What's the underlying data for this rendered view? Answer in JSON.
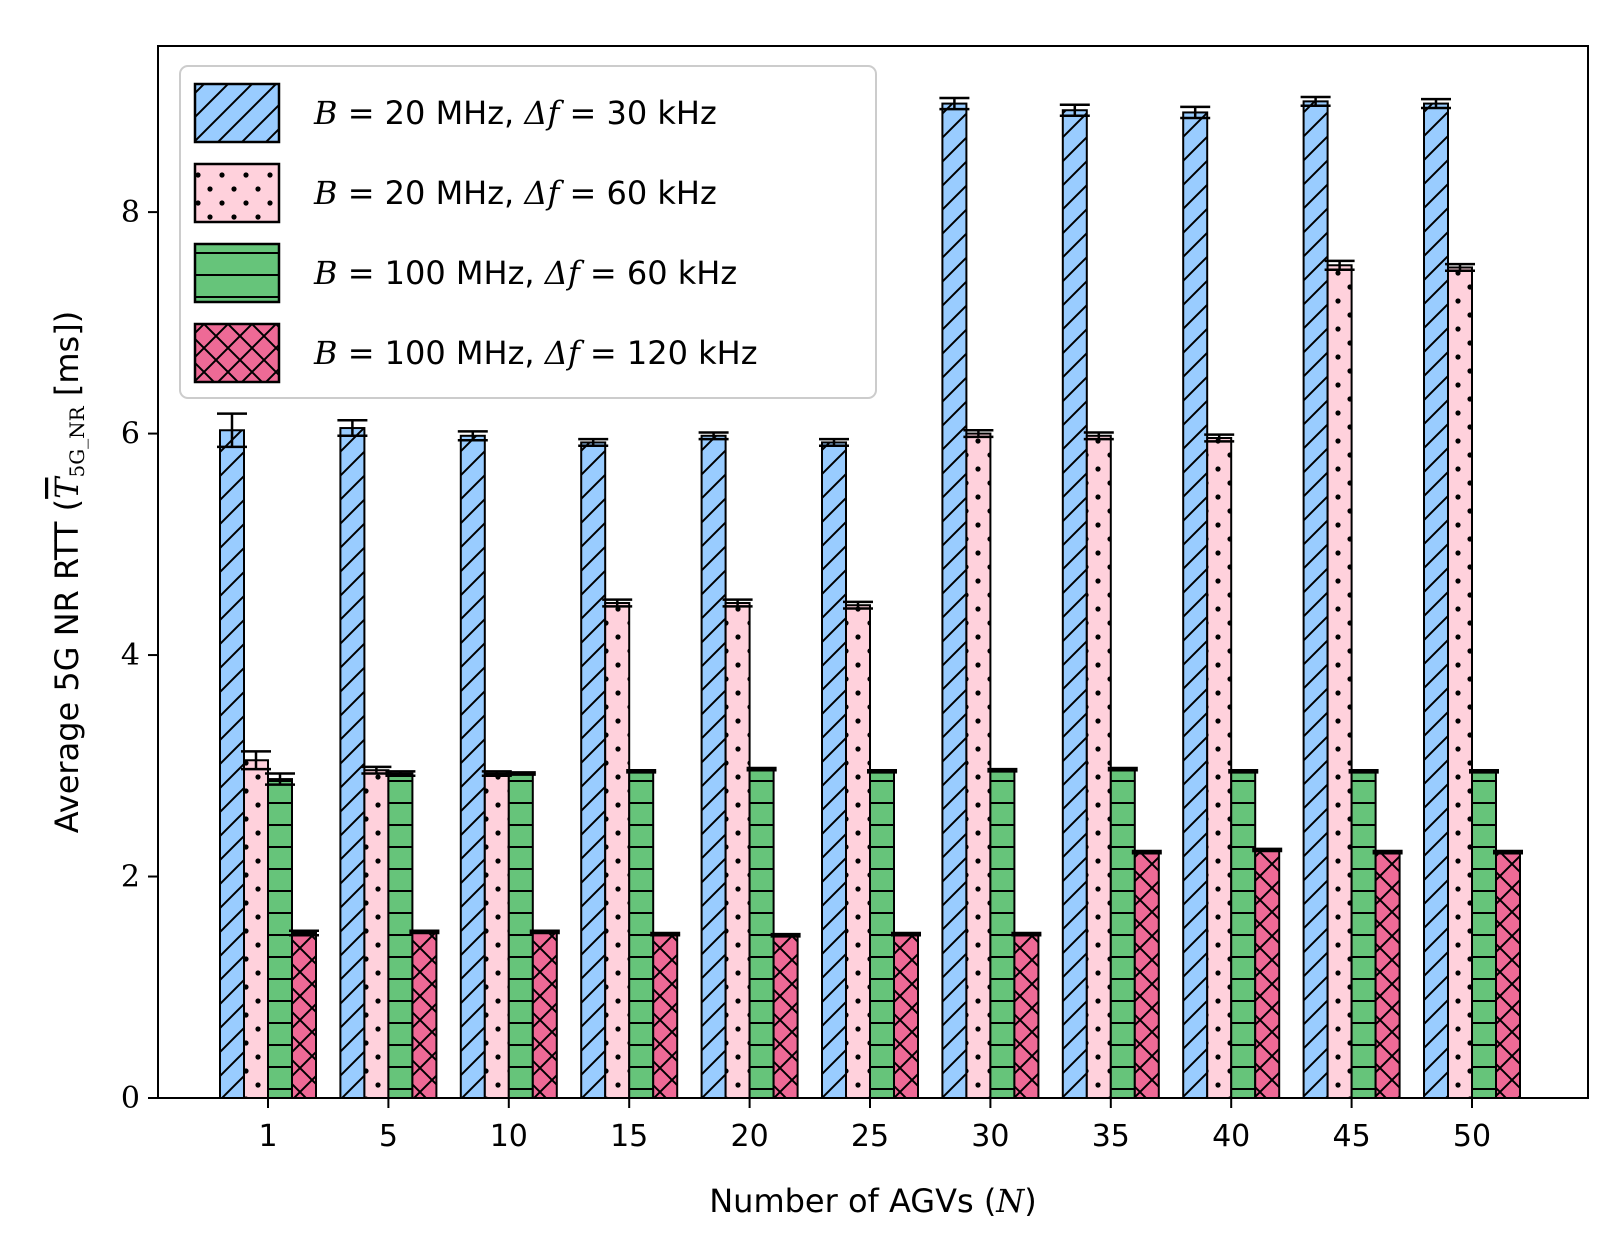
{
  "chart_data": {
    "type": "bar",
    "title": "",
    "xlabel": "Number of AGVs (N)",
    "ylabel": "Average 5G NR RTT (T̅ 5G_NR [ms])",
    "ylim": [
      0,
      9.5
    ],
    "yticks": [
      0,
      2,
      4,
      6,
      8
    ],
    "categories": [
      "1",
      "5",
      "10",
      "15",
      "20",
      "25",
      "30",
      "35",
      "40",
      "45",
      "50"
    ],
    "legend_position": "top-left",
    "grid": false,
    "series": [
      {
        "name": "B = 20 MHz, Δf = 30 kHz",
        "color": "#99ccff",
        "hatch": "diagonal",
        "values": [
          6.03,
          6.05,
          5.98,
          5.92,
          5.98,
          5.92,
          8.98,
          8.92,
          8.9,
          9.0,
          8.98
        ],
        "errors": [
          0.15,
          0.07,
          0.04,
          0.03,
          0.03,
          0.03,
          0.05,
          0.05,
          0.05,
          0.04,
          0.04
        ]
      },
      {
        "name": "B = 20 MHz, Δf = 60 kHz",
        "color": "#ffd1dc",
        "hatch": "dots",
        "values": [
          3.05,
          2.96,
          2.93,
          4.47,
          4.47,
          4.45,
          6.0,
          5.98,
          5.96,
          7.52,
          7.5
        ],
        "errors": [
          0.08,
          0.03,
          0.02,
          0.03,
          0.03,
          0.03,
          0.03,
          0.03,
          0.03,
          0.04,
          0.03
        ]
      },
      {
        "name": "B = 100 MHz, Δf = 60 kHz",
        "color": "#66c47a",
        "hatch": "horizontal",
        "values": [
          2.88,
          2.93,
          2.93,
          2.95,
          2.97,
          2.95,
          2.96,
          2.97,
          2.95,
          2.95,
          2.95
        ],
        "errors": [
          0.05,
          0.02,
          0.01,
          0.01,
          0.01,
          0.01,
          0.01,
          0.01,
          0.01,
          0.01,
          0.01
        ]
      },
      {
        "name": "B = 100 MHz, Δf = 120 kHz",
        "color": "#ee6a96",
        "hatch": "cross",
        "values": [
          1.49,
          1.5,
          1.5,
          1.48,
          1.47,
          1.48,
          1.48,
          2.22,
          2.24,
          2.22,
          2.22
        ],
        "errors": [
          0.02,
          0.01,
          0.01,
          0.01,
          0.01,
          0.01,
          0.01,
          0.01,
          0.01,
          0.01,
          0.01
        ]
      }
    ],
    "legend": [
      {
        "prefix": "B",
        "mid": " = 20 MHz, ",
        "delta": "Δf",
        "suffix": " = 30 kHz"
      },
      {
        "prefix": "B",
        "mid": " = 20 MHz, ",
        "delta": "Δf",
        "suffix": " = 60 kHz"
      },
      {
        "prefix": "B",
        "mid": " = 100 MHz, ",
        "delta": "Δf",
        "suffix": " = 60 kHz"
      },
      {
        "prefix": "B",
        "mid": " = 100 MHz, ",
        "delta": "Δf",
        "suffix": " = 120 kHz"
      }
    ],
    "xlabel_parts": {
      "text": "Number of AGVs (",
      "var": "N",
      "close": ")"
    },
    "ylabel_parts": {
      "text": "Average 5G NR RTT (",
      "var": "T",
      "sub": "5G_NR",
      "unit": " [ms])"
    }
  }
}
